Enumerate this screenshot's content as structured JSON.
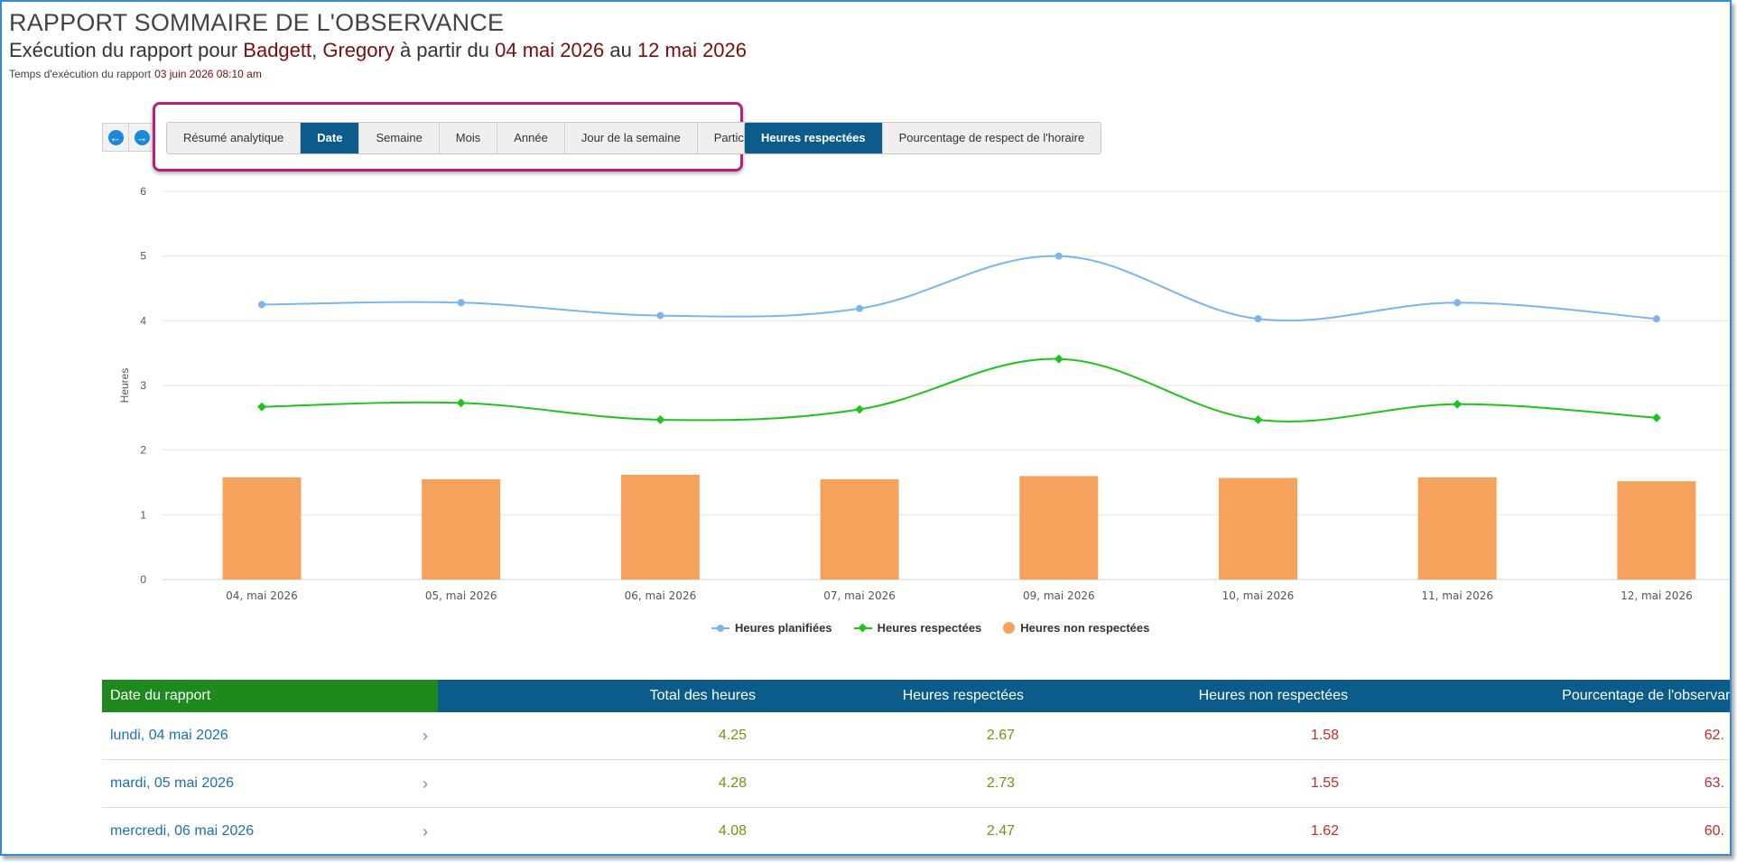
{
  "header": {
    "title": "RAPPORT SOMMAIRE DE L'OBSERVANCE",
    "subtitle_prefix": "Exécution du rapport pour ",
    "last_name": "Badgett",
    "comma": ", ",
    "first_name": "Gregory",
    "from_text": " à partir du ",
    "start_date": "04 mai 2026",
    "to_text": " au ",
    "end_date": "12 mai 2026",
    "runtime_label": "Temps d'exécution du rapport",
    "runtime_value": "03 juin 2026 08:10 am"
  },
  "nav": {
    "prev_icon": "arrow-left-icon",
    "next_icon": "arrow-right-icon"
  },
  "tabs": [
    {
      "label": "Résumé analytique",
      "active": false
    },
    {
      "label": "Date",
      "active": true
    },
    {
      "label": "Semaine",
      "active": false
    },
    {
      "label": "Mois",
      "active": false
    },
    {
      "label": "Année",
      "active": false
    },
    {
      "label": "Jour de la semaine",
      "active": false
    },
    {
      "label": "Participant",
      "active": false
    }
  ],
  "metric_tabs": [
    {
      "label": "Heures respectées",
      "active": true
    },
    {
      "label": "Pourcentage de respect de l'horaire",
      "active": false
    }
  ],
  "chart_data": {
    "type": "line",
    "categories": [
      "04, mai 2026",
      "05, mai 2026",
      "06, mai 2026",
      "07, mai 2026",
      "09, mai 2026",
      "10, mai 2026",
      "11, mai 2026",
      "12, mai 2026"
    ],
    "ylabel": "Heures",
    "ylim": [
      0,
      6
    ],
    "yticks": [
      0,
      1,
      2,
      3,
      4,
      5,
      6
    ],
    "grid": true,
    "legend_placement": "bottom-center",
    "series": [
      {
        "name": "Heures planifiées",
        "type": "line",
        "color": "#7cb5ec",
        "values": [
          4.25,
          4.28,
          4.08,
          4.19,
          5.0,
          4.03,
          4.28,
          4.03
        ]
      },
      {
        "name": "Heures respectées",
        "type": "line",
        "color": "#1ec31e",
        "values": [
          2.67,
          2.73,
          2.47,
          2.63,
          3.41,
          2.47,
          2.71,
          2.5
        ]
      },
      {
        "name": "Heures non respectées",
        "type": "bar",
        "color": "#f5a35c",
        "values": [
          1.58,
          1.55,
          1.62,
          1.55,
          1.6,
          1.57,
          1.58,
          1.52
        ]
      }
    ]
  },
  "table": {
    "headers": [
      "Date du rapport",
      "Total des heures",
      "Heures respectées",
      "Heures non respectées",
      "Pourcentage de l'observan"
    ],
    "rows": [
      {
        "date": "lundi, 04 mai 2026",
        "total": "4.25",
        "respected": "2.67",
        "not_respected": "1.58",
        "pct": "62."
      },
      {
        "date": "mardi, 05 mai 2026",
        "total": "4.28",
        "respected": "2.73",
        "not_respected": "1.55",
        "pct": "63."
      },
      {
        "date": "mercredi, 06 mai 2026",
        "total": "4.08",
        "respected": "2.47",
        "not_respected": "1.62",
        "pct": "60."
      }
    ],
    "chevron": "chevron-right-icon"
  }
}
